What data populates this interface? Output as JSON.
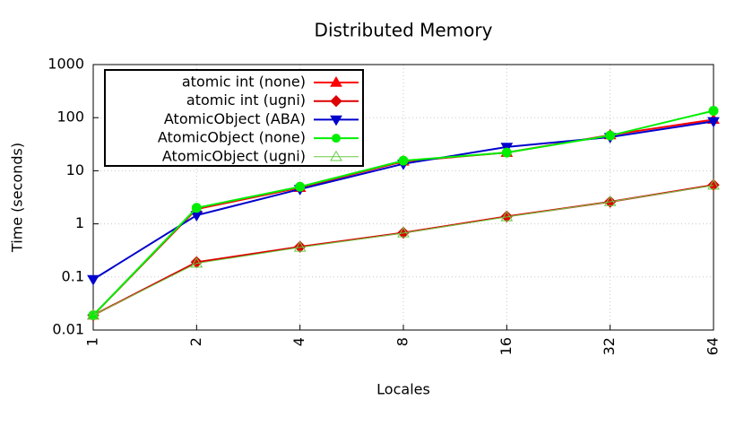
{
  "chart_data": {
    "type": "line",
    "title": "Distributed Memory",
    "x_label": "Locales",
    "y_label": "Time (seconds)",
    "x": [
      1,
      2,
      4,
      8,
      16,
      32,
      64
    ],
    "xscale": "log",
    "xlim": [
      1,
      64
    ],
    "xticks": [
      1,
      2,
      4,
      8,
      16,
      32,
      64
    ],
    "yscale": "log",
    "ylim": [
      0.01,
      1000
    ],
    "yticks": [
      0.01,
      0.1,
      1,
      10,
      100,
      1000
    ],
    "grid": true,
    "legend": "upper left",
    "series": [
      {
        "name": "atomic int (none)",
        "color": "#ff0000",
        "marker": "triangle-up",
        "values": [
          0.019,
          1.9,
          4.8,
          15,
          22,
          47,
          92
        ]
      },
      {
        "name": "atomic int (ugni)",
        "color": "#dd0000",
        "marker": "diamond",
        "values": [
          0.019,
          0.19,
          0.37,
          0.68,
          1.38,
          2.6,
          5.4
        ]
      },
      {
        "name": "AtomicObject (ABA)",
        "color": "#0000cc",
        "marker": "triangle-down",
        "values": [
          0.09,
          1.45,
          4.5,
          13.5,
          28,
          43,
          85
        ]
      },
      {
        "name": "AtomicObject (none)",
        "color": "#00ee00",
        "marker": "circle",
        "values": [
          0.019,
          2.0,
          5.0,
          15.5,
          22,
          46,
          135
        ]
      },
      {
        "name": "AtomicObject (ugni)",
        "color": "#66cc44",
        "marker": "triangle-open",
        "values": [
          0.019,
          0.18,
          0.36,
          0.67,
          1.35,
          2.6,
          5.3
        ]
      }
    ]
  }
}
